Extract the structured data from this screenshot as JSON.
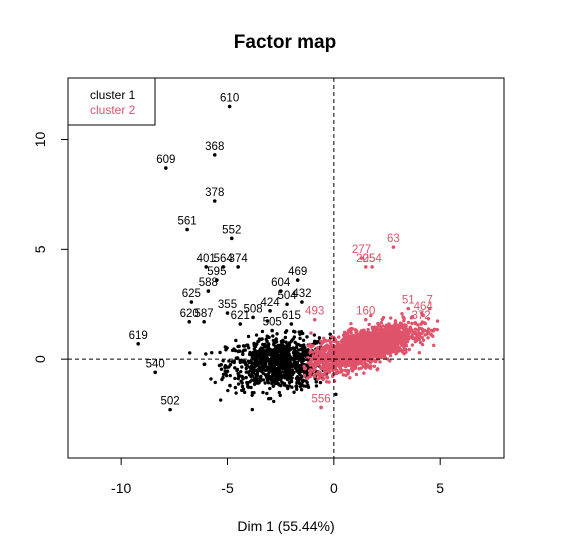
{
  "chart_data": {
    "type": "scatter",
    "title": "Factor map",
    "xlabel": "Dim 1 (55.44%)",
    "ylabel": "",
    "xlim": [
      -12.5,
      8.0
    ],
    "ylim": [
      -4.5,
      12.8
    ],
    "x_ticks": [
      -10,
      -5,
      0,
      5
    ],
    "y_ticks": [
      0,
      5,
      10
    ],
    "reference_lines": {
      "x": 0,
      "y": 0,
      "style": "dashed"
    },
    "legend": {
      "position": "top-left",
      "entries": [
        "cluster 1",
        "cluster 2"
      ]
    },
    "series": [
      {
        "name": "cluster 1",
        "color": "#000000",
        "labeled_points": [
          {
            "label": "610",
            "x": -4.9,
            "y": 11.5
          },
          {
            "label": "609",
            "x": -7.9,
            "y": 8.7
          },
          {
            "label": "368",
            "x": -5.6,
            "y": 9.3
          },
          {
            "label": "378",
            "x": -5.6,
            "y": 7.2
          },
          {
            "label": "561",
            "x": -6.9,
            "y": 5.9
          },
          {
            "label": "552",
            "x": -4.8,
            "y": 5.5
          },
          {
            "label": "401",
            "x": -6.0,
            "y": 4.2
          },
          {
            "label": "564",
            "x": -5.2,
            "y": 4.2
          },
          {
            "label": "374",
            "x": -4.5,
            "y": 4.2
          },
          {
            "label": "595",
            "x": -5.5,
            "y": 3.6
          },
          {
            "label": "469",
            "x": -1.7,
            "y": 3.6
          },
          {
            "label": "588",
            "x": -5.9,
            "y": 3.1
          },
          {
            "label": "604",
            "x": -2.5,
            "y": 3.1
          },
          {
            "label": "625",
            "x": -6.7,
            "y": 2.6
          },
          {
            "label": "432",
            "x": -1.5,
            "y": 2.6
          },
          {
            "label": "504",
            "x": -2.2,
            "y": 2.5
          },
          {
            "label": "424",
            "x": -3.0,
            "y": 2.2
          },
          {
            "label": "355",
            "x": -5.0,
            "y": 2.1
          },
          {
            "label": "508",
            "x": -3.8,
            "y": 1.9
          },
          {
            "label": "620",
            "x": -6.8,
            "y": 1.7
          },
          {
            "label": "587",
            "x": -6.1,
            "y": 1.7
          },
          {
            "label": "621",
            "x": -4.4,
            "y": 1.6
          },
          {
            "label": "615",
            "x": -2.0,
            "y": 1.6
          },
          {
            "label": "505",
            "x": -2.9,
            "y": 1.3
          },
          {
            "label": "619",
            "x": -9.2,
            "y": 0.7
          },
          {
            "label": "540",
            "x": -8.4,
            "y": -0.6
          },
          {
            "label": "502",
            "x": -7.7,
            "y": -2.3
          }
        ]
      },
      {
        "name": "cluster 2",
        "color": "#df536b",
        "labeled_points": [
          {
            "label": "63",
            "x": 2.8,
            "y": 5.1
          },
          {
            "label": "277",
            "x": 1.3,
            "y": 4.6
          },
          {
            "label": "205",
            "x": 1.5,
            "y": 4.2
          },
          {
            "label": "254",
            "x": 1.8,
            "y": 4.2
          },
          {
            "label": "51",
            "x": 3.5,
            "y": 2.3
          },
          {
            "label": "7",
            "x": 4.5,
            "y": 2.3
          },
          {
            "label": "464",
            "x": 4.2,
            "y": 2.0
          },
          {
            "label": "372",
            "x": 4.1,
            "y": 1.6
          },
          {
            "label": "160",
            "x": 1.5,
            "y": 1.8
          },
          {
            "label": "493",
            "x": -0.9,
            "y": 1.8
          },
          {
            "label": "556",
            "x": -0.6,
            "y": -2.2
          }
        ]
      }
    ]
  }
}
